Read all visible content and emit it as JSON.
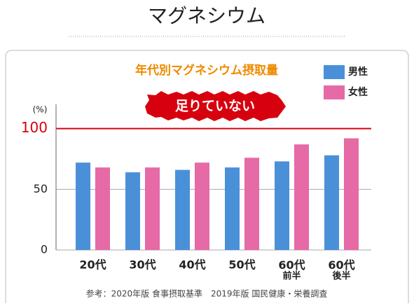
{
  "page_title": "マグネシウム",
  "chart_data": {
    "type": "bar",
    "title": "年代別マグネシウム摂取量",
    "badge": "足りていない",
    "y_label": "(%)",
    "categories": [
      "20代",
      "30代",
      "40代",
      "50代",
      "60代\n前半",
      "60代\n後半"
    ],
    "series": [
      {
        "name": "男性",
        "color": "#4a90d9",
        "values": [
          72,
          64,
          66,
          68,
          73,
          78
        ]
      },
      {
        "name": "女性",
        "color": "#e56aa6",
        "values": [
          68,
          68,
          72,
          76,
          87,
          92
        ]
      }
    ],
    "ylim": [
      0,
      120
    ],
    "yticks": [
      0,
      50,
      100
    ],
    "grid": true,
    "reference_line": {
      "value": 100,
      "color": "#d7000f"
    },
    "legend": "upper right",
    "source": "参考：2020年版 食事摂取基準　2019年版 国民健康・栄養調査"
  }
}
